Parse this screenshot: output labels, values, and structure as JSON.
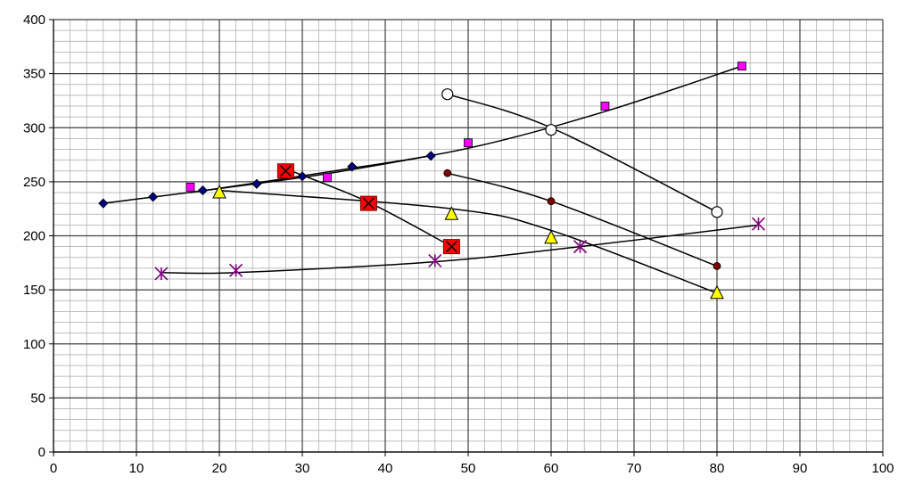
{
  "chart_data": {
    "type": "scatter",
    "title": "",
    "xlabel": "",
    "ylabel": "",
    "xlim": [
      0,
      100
    ],
    "ylim": [
      0,
      400
    ],
    "x_ticks": [
      0,
      10,
      20,
      30,
      40,
      50,
      60,
      70,
      80,
      90,
      100
    ],
    "y_ticks": [
      0,
      50,
      100,
      150,
      200,
      250,
      300,
      350,
      400
    ],
    "x_tick_labels": [
      "0",
      "10",
      "20",
      "30",
      "40",
      "50",
      "60",
      "70",
      "80",
      "90",
      "100"
    ],
    "y_tick_labels": [
      "0",
      "50",
      "100",
      "150",
      "200",
      "250",
      "300",
      "350",
      "400"
    ],
    "grid": "major and minor",
    "legend": "none",
    "series": [
      {
        "marker": "diamond",
        "color": "#000080",
        "points": [
          [
            6,
            230
          ],
          [
            12,
            236
          ],
          [
            18,
            242
          ],
          [
            24.5,
            248
          ],
          [
            30,
            255
          ],
          [
            36,
            264
          ],
          [
            45.5,
            274
          ]
        ],
        "trendline": [
          [
            6,
            230
          ],
          [
            30,
            254
          ],
          [
            45.5,
            274
          ]
        ]
      },
      {
        "marker": "square",
        "color": "#ff00ff",
        "points": [
          [
            16.5,
            245
          ],
          [
            33,
            254
          ],
          [
            50,
            286
          ],
          [
            66.5,
            320
          ],
          [
            83,
            357
          ]
        ],
        "trendline": [
          [
            16.5,
            240
          ],
          [
            33,
            259
          ],
          [
            50,
            281
          ],
          [
            66.5,
            315
          ],
          [
            83,
            357
          ]
        ]
      },
      {
        "marker": "open-circle",
        "color": "#ffffff",
        "points": [
          [
            47.5,
            331
          ],
          [
            60,
            298
          ],
          [
            80,
            222
          ]
        ],
        "trendline": [
          [
            47.5,
            331
          ],
          [
            60,
            300
          ],
          [
            80,
            222
          ]
        ]
      },
      {
        "marker": "dot",
        "color": "#800000",
        "points": [
          [
            47.5,
            258
          ],
          [
            60,
            232
          ],
          [
            80,
            172
          ]
        ],
        "trendline": [
          [
            47.5,
            258
          ],
          [
            60,
            232
          ],
          [
            80,
            172
          ]
        ]
      },
      {
        "marker": "boxed-x",
        "color": "#ff0000",
        "points": [
          [
            28,
            260
          ],
          [
            38,
            230
          ],
          [
            48,
            190
          ]
        ],
        "trendline": [
          [
            28,
            262
          ],
          [
            38,
            231
          ],
          [
            48,
            190
          ]
        ]
      },
      {
        "marker": "triangle",
        "color": "#ffff00",
        "points": [
          [
            20,
            240
          ],
          [
            48,
            220
          ],
          [
            60,
            198
          ],
          [
            80,
            147
          ]
        ],
        "trendline": [
          [
            20,
            242
          ],
          [
            48,
            225
          ],
          [
            60,
            205
          ],
          [
            80,
            147
          ]
        ]
      },
      {
        "marker": "star",
        "color": "#800080",
        "points": [
          [
            13,
            165
          ],
          [
            22,
            168
          ],
          [
            46,
            177
          ],
          [
            63.5,
            190
          ],
          [
            85,
            211
          ]
        ],
        "trendline": [
          [
            13,
            166
          ],
          [
            22,
            166
          ],
          [
            46,
            176
          ],
          [
            63.5,
            190
          ],
          [
            85,
            210
          ]
        ]
      }
    ]
  }
}
